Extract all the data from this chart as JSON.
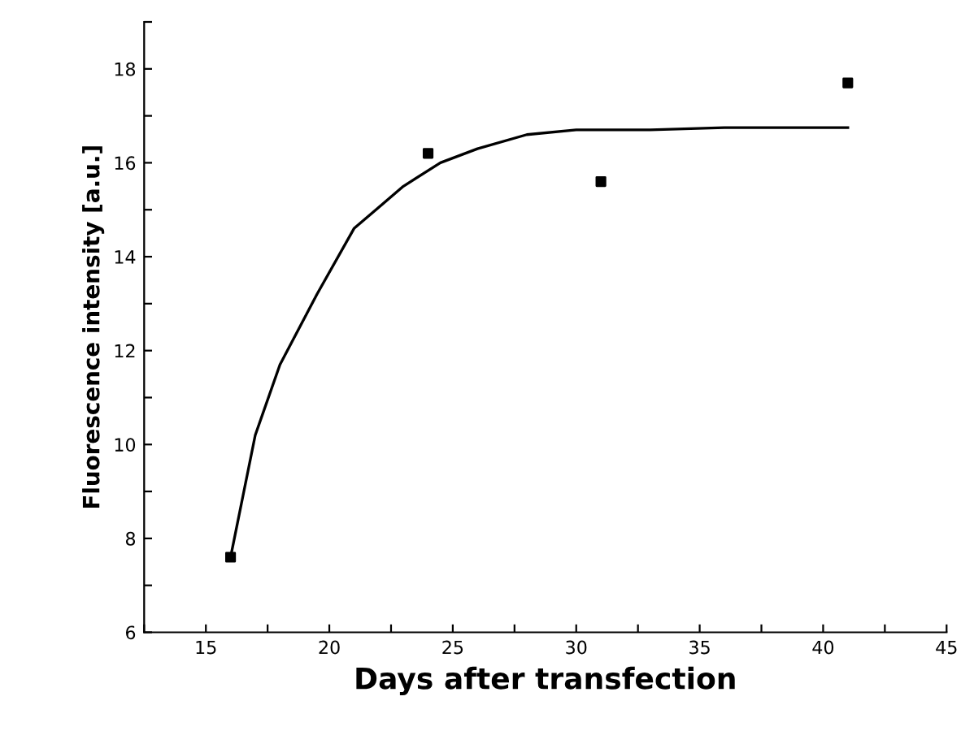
{
  "chart_data": {
    "type": "scatter",
    "xlabel": "Days after transfection",
    "ylabel": "Fluorescence intensity [a.u.]",
    "series": [
      {
        "color": "#000000",
        "marker": "square",
        "x": [
          16,
          24,
          31,
          41
        ],
        "values": [
          7.6,
          16.2,
          15.6,
          17.7
        ]
      },
      {
        "type": "line",
        "color": "#000000",
        "marker": "none",
        "line_style": "solid",
        "x": [
          16,
          17,
          18,
          19.5,
          21,
          23,
          24.5,
          26,
          28,
          30,
          33,
          36,
          41
        ],
        "values": [
          7.6,
          10.2,
          11.7,
          13.2,
          14.6,
          15.5,
          16.0,
          16.3,
          16.6,
          16.7,
          16.7,
          16.75,
          16.75
        ]
      }
    ],
    "xlim": [
      12.5,
      45
    ],
    "ylim": [
      6,
      19
    ],
    "xticks": [
      {
        "value": 12.5,
        "label": null
      },
      15,
      {
        "value": 17.5,
        "label": null
      },
      20,
      {
        "value": 22.5,
        "label": null
      },
      25,
      {
        "value": 27.5,
        "label": null
      },
      30,
      {
        "value": 32.5,
        "label": null
      },
      35,
      {
        "value": 37.5,
        "label": null
      },
      40,
      {
        "value": 42.5,
        "label": null
      },
      45
    ],
    "yticks": [
      6,
      {
        "value": 7,
        "label": null
      },
      8,
      {
        "value": 9,
        "label": null
      },
      10,
      {
        "value": 11,
        "label": null
      },
      12,
      {
        "value": 13,
        "label": null
      },
      14,
      {
        "value": 15,
        "label": null
      },
      16,
      {
        "value": 17,
        "label": null
      },
      18,
      {
        "value": 19,
        "label": null
      }
    ],
    "grid": false
  }
}
